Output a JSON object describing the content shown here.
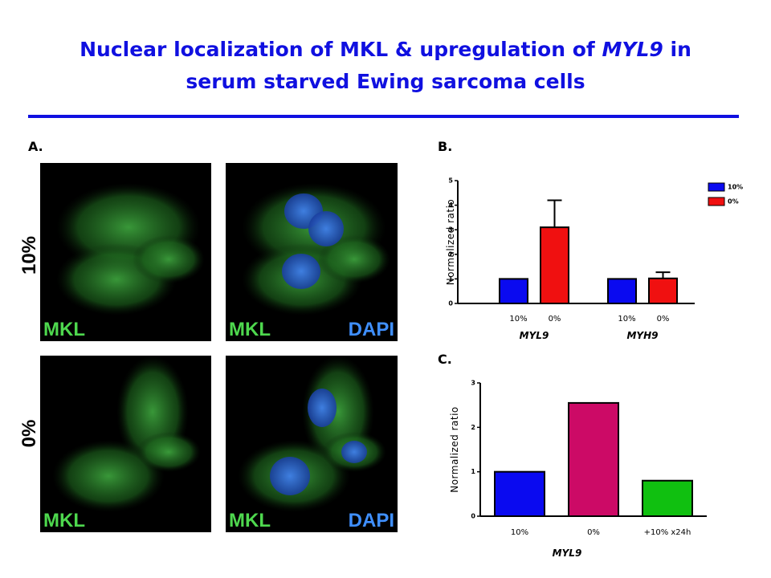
{
  "title": {
    "line1": [
      "Nuclear localization of MKL & upregulation of ",
      "MYL9",
      " in"
    ],
    "line2": "serum starved Ewing sarcoma cells"
  },
  "panel_a": {
    "label": "A.",
    "rows": [
      "10%",
      "0%"
    ],
    "stains": [
      "MKL",
      "DAPI"
    ]
  },
  "chart_data": [
    {
      "type": "bar",
      "label": "B.",
      "y_label": "Normalized ratio",
      "categories": [
        "MYL9",
        "MYH9"
      ],
      "series": [
        {
          "name": "10%",
          "color": "#0a0af0",
          "values": [
            1,
            1
          ]
        },
        {
          "name": "0%",
          "color": "#f01010",
          "values": [
            3.1,
            1.02
          ],
          "errors": [
            1.1,
            0.25
          ]
        }
      ],
      "ylim": [
        0,
        5
      ],
      "yticks": [
        0,
        1,
        2,
        3,
        4,
        5
      ],
      "legend": "top-right"
    },
    {
      "type": "bar",
      "label": "C.",
      "y_label": "Normalized ratio",
      "x_label": "MYL9",
      "categories": [
        "10%",
        "0%",
        "+10% x24h"
      ],
      "values": [
        1,
        2.55,
        0.8
      ],
      "colors": [
        "#0a0af0",
        "#cc0a66",
        "#10c010"
      ],
      "ylim": [
        0,
        3
      ],
      "yticks": [
        0,
        1,
        2,
        3
      ]
    }
  ]
}
